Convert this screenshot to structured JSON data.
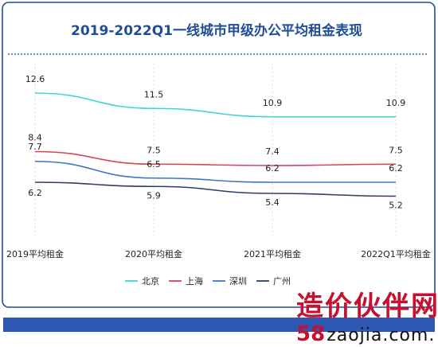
{
  "chart_data": {
    "type": "line",
    "title": "2019-2022Q1一线城市甲级办公平均租金表现",
    "categories": [
      "2019平均租金",
      "2020平均租金",
      "2021平均租金",
      "2022Q1平均租金"
    ],
    "series": [
      {
        "name": "北京",
        "color": "#3cd6d2",
        "values": [
          12.6,
          11.5,
          10.9,
          10.9
        ]
      },
      {
        "name": "上海",
        "color": "#d9445a",
        "values": [
          8.4,
          7.5,
          7.4,
          7.5
        ]
      },
      {
        "name": "深圳",
        "color": "#3b78b8",
        "values": [
          7.7,
          6.5,
          6.2,
          6.2
        ]
      },
      {
        "name": "广州",
        "color": "#2e3f64",
        "values": [
          6.2,
          5.9,
          5.4,
          5.2
        ]
      }
    ],
    "legend_position": "bottom",
    "grid": true
  },
  "watermark": {
    "text": "造价伙伴网",
    "url_prefix": "58",
    "url_rest": "zaojia.com."
  }
}
